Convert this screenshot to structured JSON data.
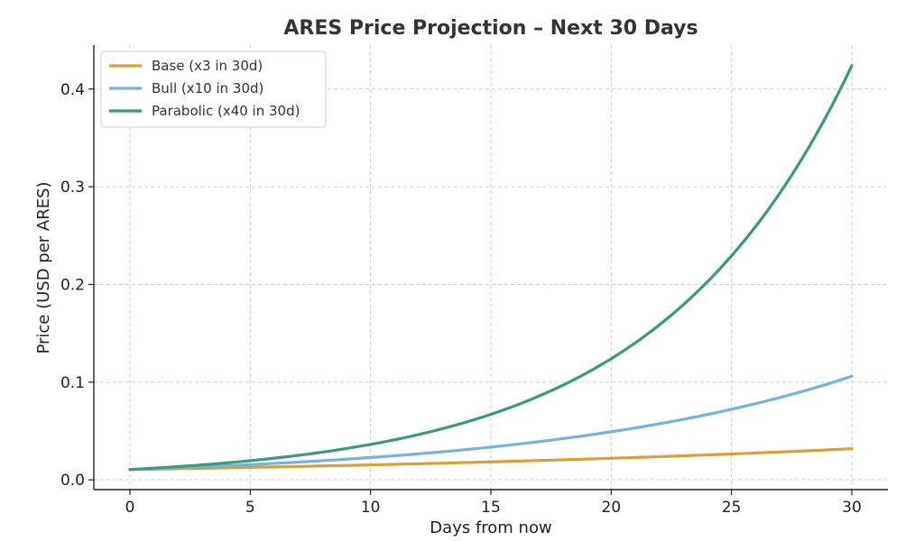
{
  "chart_data": {
    "type": "line",
    "title": "ARES Price Projection – Next 30 Days",
    "xlabel": "Days from now",
    "ylabel": "Price (USD per ARES)",
    "xlim": [
      -1.5,
      31.5
    ],
    "ylim": [
      -0.01,
      0.445
    ],
    "xticks": [
      0,
      5,
      10,
      15,
      20,
      25,
      30
    ],
    "yticks": [
      0.0,
      0.1,
      0.2,
      0.3,
      0.4
    ],
    "ytick_labels": [
      "0.0",
      "0.1",
      "0.2",
      "0.3",
      "0.4"
    ],
    "grid": true,
    "legend_position": "top-left",
    "start_price": 0.0106,
    "days": 30,
    "series": [
      {
        "name": "Base (x3 in 30d)",
        "multiplier": 3,
        "color": "#DAA032"
      },
      {
        "name": "Bull (x10 in 30d)",
        "multiplier": 10,
        "color": "#74B2E0"
      },
      {
        "name": "Parabolic (x40 in 30d)",
        "multiplier": 40,
        "color": "#3A9A79"
      }
    ]
  }
}
